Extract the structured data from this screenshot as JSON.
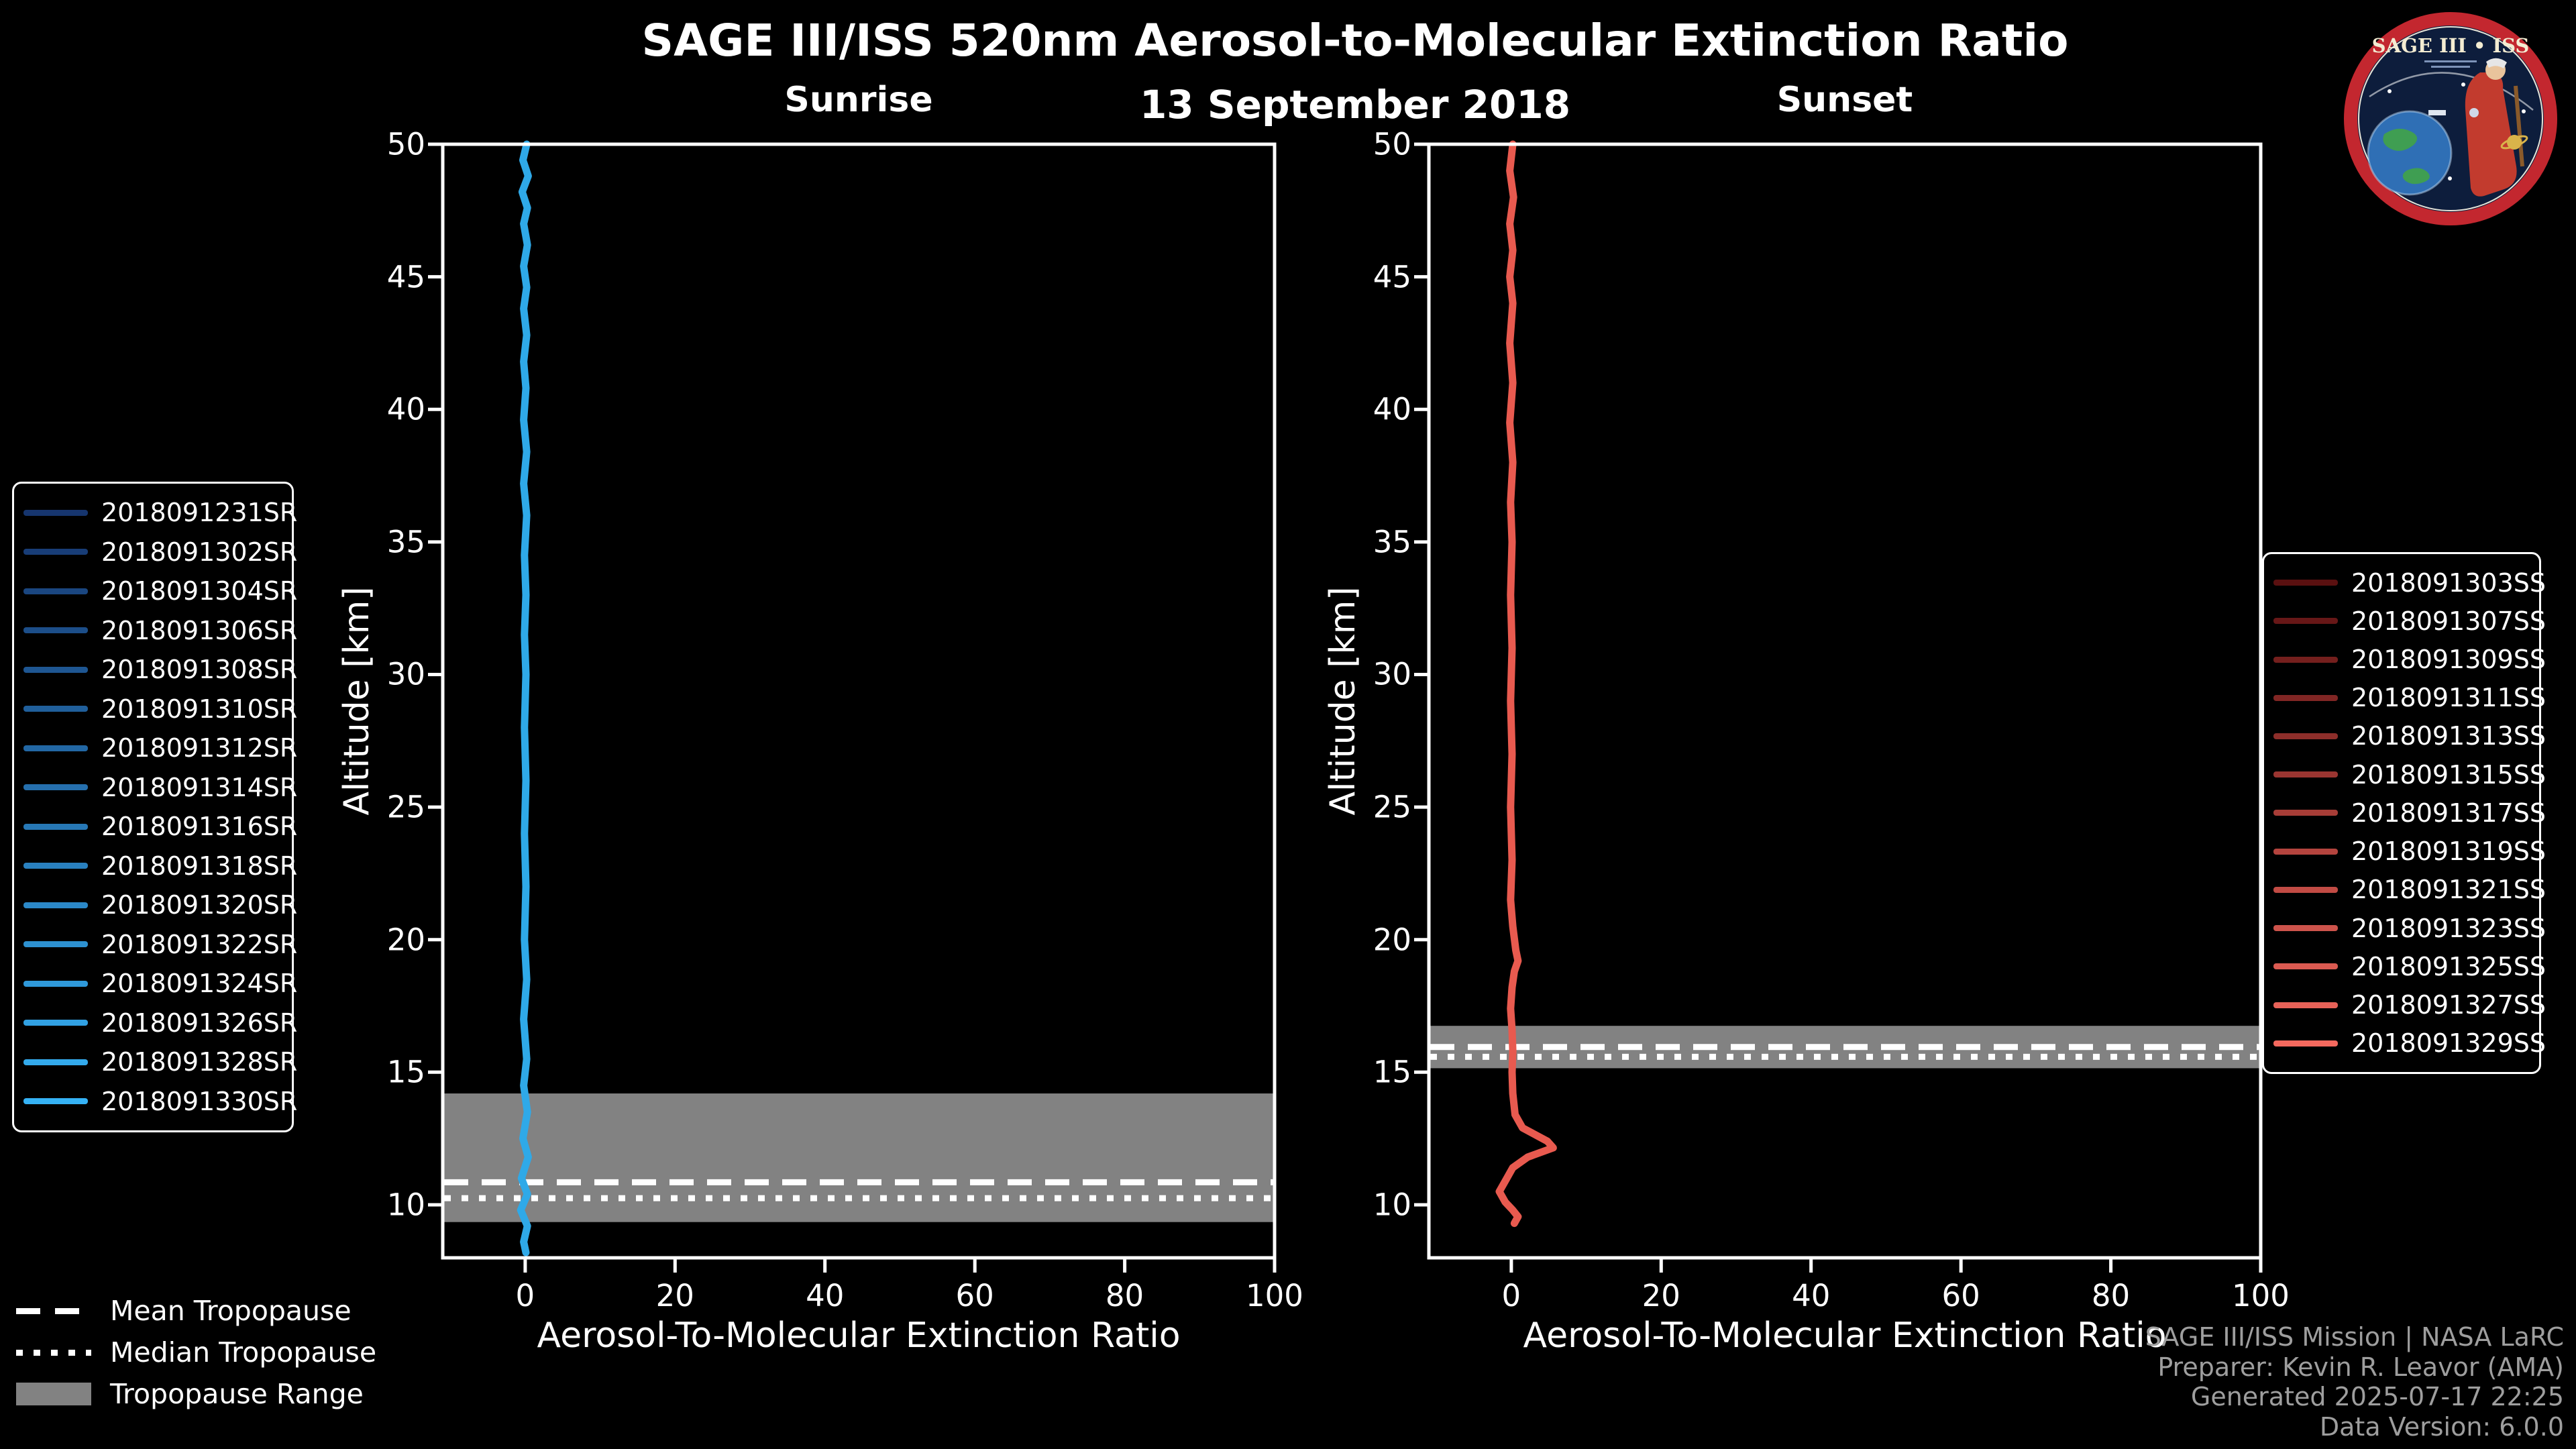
{
  "title": "SAGE III/ISS 520nm Aerosol-to-Molecular Extinction Ratio",
  "date": "13 September 2018",
  "logo": {
    "title": "SAGE III • ISS"
  },
  "colors": {
    "background": "#000000",
    "foreground": "#ffffff",
    "tropopause_band": "#828282",
    "sunrise_line": "#2fa9e8",
    "sunset_line": "#e85a4f",
    "credits_text": "#9e9e9e"
  },
  "legends": {
    "sunrise": {
      "items": [
        {
          "label": "2018091231SR",
          "color": "#16356e"
        },
        {
          "label": "2018091302SR",
          "color": "#183d77"
        },
        {
          "label": "2018091304SR",
          "color": "#1a4680"
        },
        {
          "label": "2018091306SR",
          "color": "#1c4e89"
        },
        {
          "label": "2018091308SR",
          "color": "#1e5692"
        },
        {
          "label": "2018091310SR",
          "color": "#205f9b"
        },
        {
          "label": "2018091312SR",
          "color": "#2267a4"
        },
        {
          "label": "2018091314SR",
          "color": "#256fad"
        },
        {
          "label": "2018091316SR",
          "color": "#2778b6"
        },
        {
          "label": "2018091318SR",
          "color": "#2980bf"
        },
        {
          "label": "2018091320SR",
          "color": "#2b88c8"
        },
        {
          "label": "2018091322SR",
          "color": "#2d91d1"
        },
        {
          "label": "2018091324SR",
          "color": "#2f99da"
        },
        {
          "label": "2018091326SR",
          "color": "#31a1e3"
        },
        {
          "label": "2018091328SR",
          "color": "#33aaec"
        },
        {
          "label": "2018091330SR",
          "color": "#35b2f5"
        }
      ]
    },
    "sunset": {
      "items": [
        {
          "label": "2018091303SS",
          "color": "#5a1010"
        },
        {
          "label": "2018091307SS",
          "color": "#671717"
        },
        {
          "label": "2018091309SS",
          "color": "#741f1d"
        },
        {
          "label": "2018091311SS",
          "color": "#812624"
        },
        {
          "label": "2018091313SS",
          "color": "#8d2e2a"
        },
        {
          "label": "2018091315SS",
          "color": "#9a3531"
        },
        {
          "label": "2018091317SS",
          "color": "#a73d37"
        },
        {
          "label": "2018091319SS",
          "color": "#b4443e"
        },
        {
          "label": "2018091321SS",
          "color": "#c14b44"
        },
        {
          "label": "2018091323SS",
          "color": "#cd534b"
        },
        {
          "label": "2018091325SS",
          "color": "#da5a51"
        },
        {
          "label": "2018091327SS",
          "color": "#e76258"
        },
        {
          "label": "2018091329SS",
          "color": "#f4695e"
        }
      ]
    }
  },
  "tropopause_legend": {
    "items": [
      {
        "label": "Mean Tropopause",
        "style": "dashed"
      },
      {
        "label": "Median Tropopause",
        "style": "dotted"
      },
      {
        "label": "Tropopause Range",
        "style": "band"
      }
    ]
  },
  "credits": {
    "lines": [
      "SAGE III/ISS Mission | NASA LaRC",
      "Preparer: Kevin R. Leavor (AMA)",
      "Generated 2025-07-17 22:25",
      "Data Version: 6.0.0"
    ]
  },
  "chart_data": [
    {
      "type": "line",
      "title": "Sunrise",
      "xlabel": "Aerosol-To-Molecular Extinction Ratio",
      "ylabel": "Altitude [km]",
      "xlim": [
        -11,
        100
      ],
      "ylim": [
        8,
        50
      ],
      "xticks": [
        0,
        20,
        40,
        60,
        80,
        100
      ],
      "yticks": [
        10,
        15,
        20,
        25,
        30,
        35,
        40,
        45,
        50
      ],
      "line_color": "#2fa9e8",
      "series_note": "16 overlapping sunrise profiles (see sunrise legend), all with extinction ratio ~0 from 8-50 km",
      "tropopause": {
        "mean_km": 10.85,
        "median_km": 10.25,
        "range_km": [
          9.35,
          14.2
        ]
      },
      "profile": {
        "points_ratio_altkm": [
          [
            0.2,
            50
          ],
          [
            -0.3,
            49.4
          ],
          [
            0.4,
            48.8
          ],
          [
            -0.4,
            48.2
          ],
          [
            0.3,
            47.6
          ],
          [
            -0.2,
            47
          ],
          [
            0.3,
            46.2
          ],
          [
            -0.2,
            45.4
          ],
          [
            0.2,
            44.6
          ],
          [
            -0.2,
            43.8
          ],
          [
            0.2,
            42.8
          ],
          [
            -0.2,
            41.8
          ],
          [
            0.1,
            40.8
          ],
          [
            -0.2,
            39.6
          ],
          [
            0.2,
            38.4
          ],
          [
            -0.2,
            37.2
          ],
          [
            0.2,
            36
          ],
          [
            -0.1,
            34.5
          ],
          [
            0.1,
            33
          ],
          [
            -0.1,
            31.5
          ],
          [
            0.1,
            30
          ],
          [
            -0.1,
            28
          ],
          [
            0.1,
            26
          ],
          [
            -0.1,
            24
          ],
          [
            0.1,
            22
          ],
          [
            -0.1,
            20
          ],
          [
            0.2,
            18.5
          ],
          [
            -0.2,
            17
          ],
          [
            0.2,
            15.5
          ],
          [
            -0.2,
            14.5
          ],
          [
            0.3,
            13.5
          ],
          [
            -0.3,
            12.5
          ],
          [
            0.4,
            11.8
          ],
          [
            -0.5,
            11
          ],
          [
            0.3,
            10.4
          ],
          [
            -0.6,
            9.8
          ],
          [
            0.3,
            9.2
          ],
          [
            -0.2,
            8.6
          ],
          [
            0.1,
            8.2
          ]
        ]
      }
    },
    {
      "type": "line",
      "title": "Sunset",
      "xlabel": "Aerosol-To-Molecular Extinction Ratio",
      "ylabel": "Altitude [km]",
      "xlim": [
        -11,
        100
      ],
      "ylim": [
        8,
        50
      ],
      "xticks": [
        0,
        20,
        40,
        60,
        80,
        100
      ],
      "yticks": [
        10,
        15,
        20,
        25,
        30,
        35,
        40,
        45,
        50
      ],
      "line_color": "#e85a4f",
      "series_note": "13 overlapping sunset profiles (see sunset legend), ratio ~0 aloft with a spike to ~5.5 near 12.2 km",
      "tropopause": {
        "mean_km": 15.95,
        "median_km": 15.58,
        "range_km": [
          15.15,
          16.75
        ]
      },
      "profile": {
        "points_ratio_altkm": [
          [
            0.2,
            50
          ],
          [
            -0.2,
            49
          ],
          [
            0.3,
            48
          ],
          [
            -0.2,
            47
          ],
          [
            0.2,
            46
          ],
          [
            -0.2,
            45
          ],
          [
            0.2,
            44
          ],
          [
            -0.2,
            42.5
          ],
          [
            0.2,
            41
          ],
          [
            -0.2,
            39.5
          ],
          [
            0.2,
            38
          ],
          [
            -0.1,
            36.5
          ],
          [
            0.1,
            35
          ],
          [
            -0.1,
            33
          ],
          [
            0.1,
            31
          ],
          [
            -0.1,
            29
          ],
          [
            0.1,
            27
          ],
          [
            -0.1,
            25
          ],
          [
            0.1,
            23
          ],
          [
            -0.1,
            21.5
          ],
          [
            0.2,
            20.5
          ],
          [
            0.6,
            19.6
          ],
          [
            0.9,
            19.2
          ],
          [
            0.4,
            18.8
          ],
          [
            0.1,
            18.2
          ],
          [
            -0.1,
            17.4
          ],
          [
            0.1,
            16.6
          ],
          [
            0.2,
            15.8
          ],
          [
            0.1,
            15
          ],
          [
            0.2,
            14.2
          ],
          [
            0.5,
            13.4
          ],
          [
            1.5,
            12.9
          ],
          [
            4.8,
            12.4
          ],
          [
            5.6,
            12.15
          ],
          [
            2.2,
            11.8
          ],
          [
            0.2,
            11.4
          ],
          [
            -0.6,
            11
          ],
          [
            -1.6,
            10.5
          ],
          [
            -0.8,
            10.1
          ],
          [
            0.2,
            9.8
          ],
          [
            0.9,
            9.55
          ],
          [
            0.4,
            9.3
          ]
        ]
      }
    }
  ]
}
